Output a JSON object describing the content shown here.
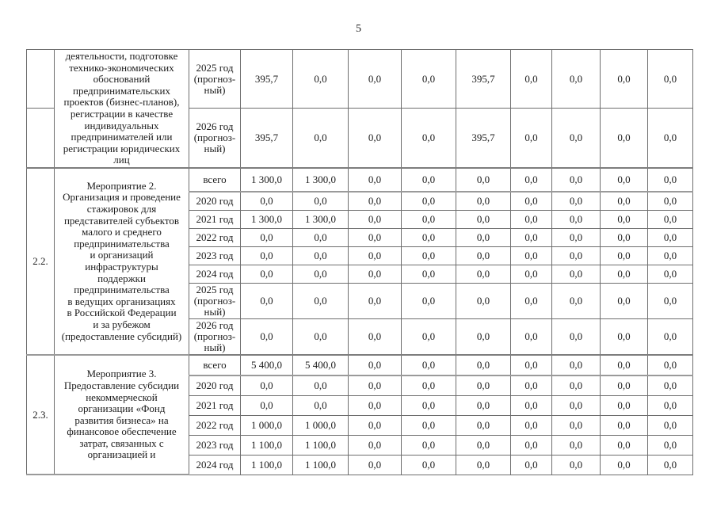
{
  "page": {
    "number": "5"
  },
  "table": {
    "sections": [
      {
        "number": "",
        "number_spans_section": false,
        "number_valign": "top",
        "description": "деятельности, подготовке\nтехнико-экономических\nобоснований\nпредпринимательских\nпроектов (бизнес-планов),\nрегистрации в качестве\nиндивидуальных\nпредпринимателей или\nрегистрации юридических\nлиц",
        "rows": [
          {
            "year": "2025 год\n(прогноз-\nный)",
            "values": [
              "395,7",
              "0,0",
              "0,0",
              "0,0",
              "395,7",
              "0,0",
              "0,0",
              "0,0",
              "0,0"
            ]
          },
          {
            "year": "2026 год\n(прогноз-\nный)",
            "values": [
              "395,7",
              "0,0",
              "0,0",
              "0,0",
              "395,7",
              "0,0",
              "0,0",
              "0,0",
              "0,0"
            ]
          }
        ]
      },
      {
        "number": "2.2.",
        "number_spans_section": true,
        "number_valign": "top",
        "description": "Мероприятие 2.\nОрганизация и проведение\nстажировок для\nпредставителей субъектов\nмалого и среднего\nпредпринимательства\nи организаций\nинфраструктуры\nподдержки\nпредпринимательства\nв ведущих организациях\nв Российской Федерации\nи за рубежом\n(предоставление субсидий)",
        "rows": [
          {
            "year": "всего",
            "total": true,
            "values": [
              "1 300,0",
              "1 300,0",
              "0,0",
              "0,0",
              "0,0",
              "0,0",
              "0,0",
              "0,0",
              "0,0"
            ]
          },
          {
            "year": "2020 год",
            "values": [
              "0,0",
              "0,0",
              "0,0",
              "0,0",
              "0,0",
              "0,0",
              "0,0",
              "0,0",
              "0,0"
            ]
          },
          {
            "year": "2021 год",
            "values": [
              "1 300,0",
              "1 300,0",
              "0,0",
              "0,0",
              "0,0",
              "0,0",
              "0,0",
              "0,0",
              "0,0"
            ]
          },
          {
            "year": "2022 год",
            "values": [
              "0,0",
              "0,0",
              "0,0",
              "0,0",
              "0,0",
              "0,0",
              "0,0",
              "0,0",
              "0,0"
            ]
          },
          {
            "year": "2023 год",
            "values": [
              "0,0",
              "0,0",
              "0,0",
              "0,0",
              "0,0",
              "0,0",
              "0,0",
              "0,0",
              "0,0"
            ]
          },
          {
            "year": "2024 год",
            "values": [
              "0,0",
              "0,0",
              "0,0",
              "0,0",
              "0,0",
              "0,0",
              "0,0",
              "0,0",
              "0,0"
            ]
          },
          {
            "year": "2025 год\n(прогноз-\nный)",
            "values": [
              "0,0",
              "0,0",
              "0,0",
              "0,0",
              "0,0",
              "0,0",
              "0,0",
              "0,0",
              "0,0"
            ]
          },
          {
            "year": "2026 год\n(прогноз-\nный)",
            "values": [
              "0,0",
              "0,0",
              "0,0",
              "0,0",
              "0,0",
              "0,0",
              "0,0",
              "0,0",
              "0,0"
            ]
          }
        ]
      },
      {
        "number": "2.3.",
        "number_spans_section": true,
        "number_valign": "middle",
        "description": "Мероприятие 3.\nПредоставление субсидии\nнекоммерческой\nорганизации «Фонд\nразвития бизнеса» на\nфинансовое обеспечение\nзатрат, связанных с\nорганизацией и",
        "rows": [
          {
            "year": "всего",
            "total": true,
            "values": [
              "5 400,0",
              "5 400,0",
              "0,0",
              "0,0",
              "0,0",
              "0,0",
              "0,0",
              "0,0",
              "0,0"
            ]
          },
          {
            "year": "2020 год",
            "values": [
              "0,0",
              "0,0",
              "0,0",
              "0,0",
              "0,0",
              "0,0",
              "0,0",
              "0,0",
              "0,0"
            ]
          },
          {
            "year": "2021 год",
            "values": [
              "0,0",
              "0,0",
              "0,0",
              "0,0",
              "0,0",
              "0,0",
              "0,0",
              "0,0",
              "0,0"
            ]
          },
          {
            "year": "2022 год",
            "values": [
              "1 000,0",
              "1 000,0",
              "0,0",
              "0,0",
              "0,0",
              "0,0",
              "0,0",
              "0,0",
              "0,0"
            ]
          },
          {
            "year": "2023 год",
            "values": [
              "1 100,0",
              "1 100,0",
              "0,0",
              "0,0",
              "0,0",
              "0,0",
              "0,0",
              "0,0",
              "0,0"
            ]
          },
          {
            "year": "2024 год",
            "values": [
              "1 100,0",
              "1 100,0",
              "0,0",
              "0,0",
              "0,0",
              "0,0",
              "0,0",
              "0,0",
              "0,0"
            ]
          }
        ]
      }
    ]
  }
}
